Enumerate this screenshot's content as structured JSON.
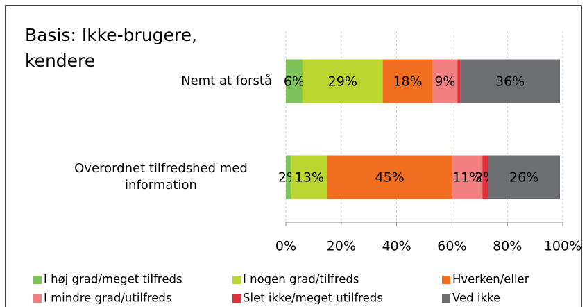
{
  "chart_data": {
    "type": "stacked_barh",
    "title": "Basis: Ikke-brugere, kendere",
    "categories": [
      "Nemt at forstå",
      "Overordnet tilfredshed med information"
    ],
    "series": [
      {
        "name": "I høj grad/meget tilfreds",
        "color": "#7dc35a",
        "values": [
          6,
          2
        ],
        "value_labels": [
          "6%",
          "2%"
        ]
      },
      {
        "name": "I nogen grad/tilfreds",
        "color": "#bcd631",
        "values": [
          29,
          13
        ],
        "value_labels": [
          "29%",
          "13%"
        ]
      },
      {
        "name": "Hverken/eller",
        "color": "#f26f21",
        "values": [
          18,
          45
        ],
        "value_labels": [
          "18%",
          "45%"
        ]
      },
      {
        "name": "I mindre grad/utilfreds",
        "color": "#f28080",
        "values": [
          9,
          11
        ],
        "value_labels": [
          "9%",
          "11%"
        ]
      },
      {
        "name": "Slet ikke/meget utilfreds",
        "color": "#e0303c",
        "values": [
          1,
          2
        ],
        "value_labels": [
          null,
          "2%"
        ]
      },
      {
        "name": "Ved ikke",
        "color": "#6d6e71",
        "values": [
          36,
          26
        ],
        "value_labels": [
          "36%",
          "26%"
        ]
      }
    ],
    "xlim": [
      0,
      100
    ],
    "xticks": [
      {
        "value": 0,
        "label": "0%"
      },
      {
        "value": 20,
        "label": "20%"
      },
      {
        "value": 40,
        "label": "40%"
      },
      {
        "value": 60,
        "label": "60%"
      },
      {
        "value": 80,
        "label": "80%"
      },
      {
        "value": 100,
        "label": "100%"
      }
    ],
    "grid": true,
    "legend": "bottom"
  }
}
